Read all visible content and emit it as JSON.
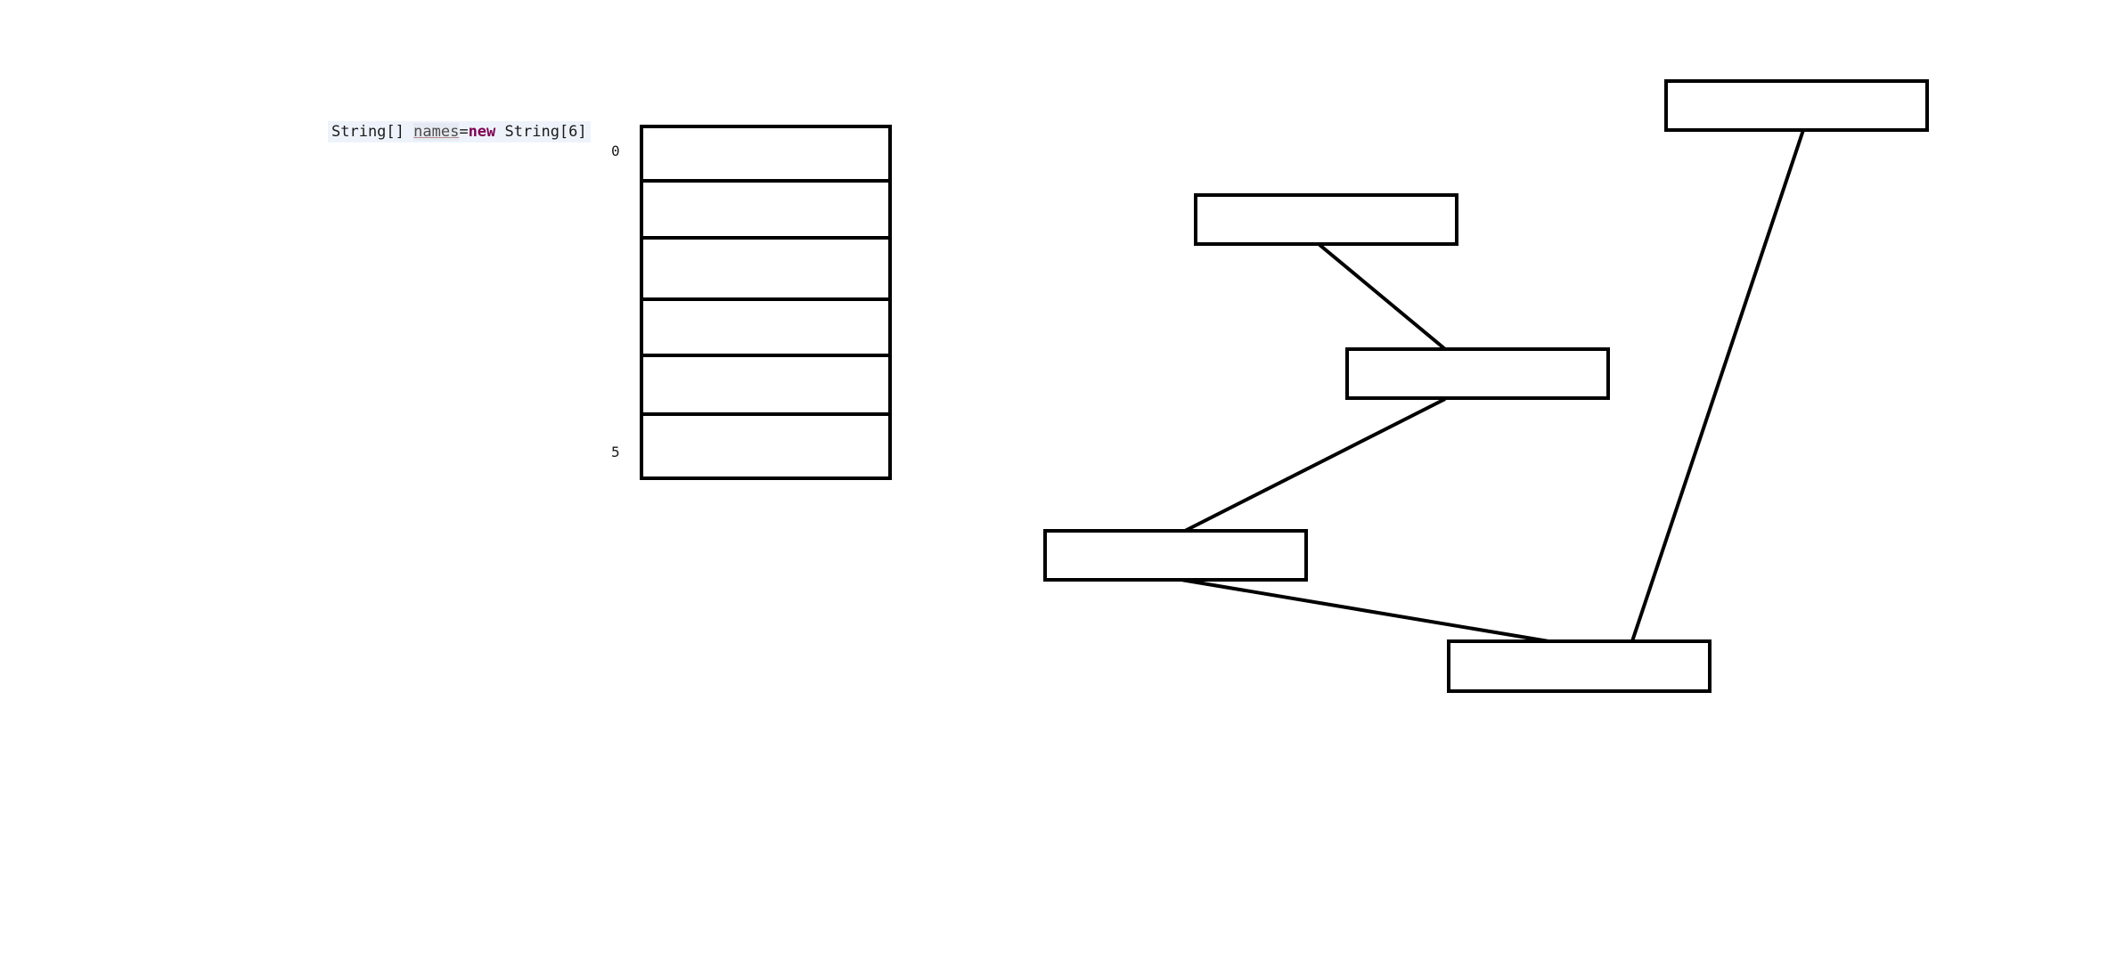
{
  "code": {
    "type_part": "String[] ",
    "variable": "names",
    "operator": "=",
    "keyword": "new",
    "constructor": " String[6]"
  },
  "array": {
    "first_index": "0",
    "last_index": "5",
    "cell_count": 6
  },
  "linked_nodes": {
    "node_count": 5,
    "connector_count": 4
  }
}
